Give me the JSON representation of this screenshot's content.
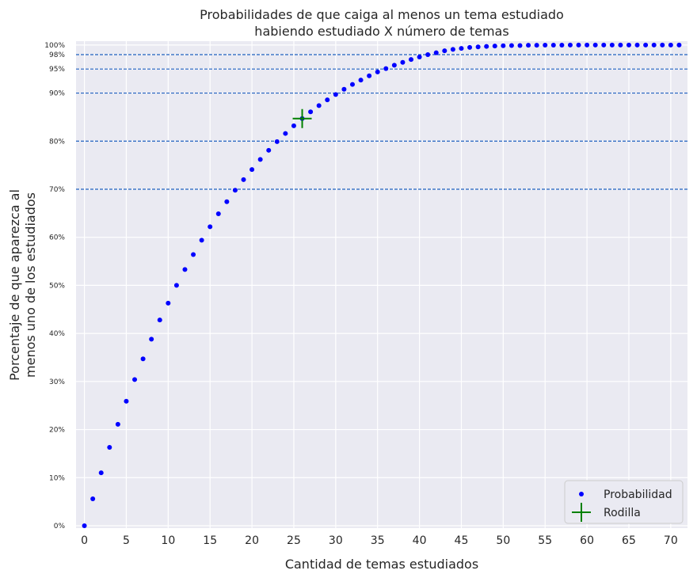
{
  "chart_data": {
    "type": "scatter",
    "title_line1": "Probabilidades de que caiga al menos un tema estudiado",
    "title_line2": "habiendo estudiado X número de temas",
    "xlabel": "Cantidad de temas estudiados",
    "ylabel_line1": "Porcentaje de que aparezca al",
    "ylabel_line2": "menos uno de los estudiados",
    "xlim": [
      -1,
      72
    ],
    "ylim": [
      -0.5,
      100.8
    ],
    "x_ticks": [
      0,
      5,
      10,
      15,
      20,
      25,
      30,
      35,
      40,
      45,
      50,
      55,
      60,
      65,
      70
    ],
    "y_ticks": [
      {
        "value": 0,
        "label": "0%"
      },
      {
        "value": 10,
        "label": "10%"
      },
      {
        "value": 20,
        "label": "20%"
      },
      {
        "value": 30,
        "label": "30%"
      },
      {
        "value": 40,
        "label": "40%"
      },
      {
        "value": 50,
        "label": "50%"
      },
      {
        "value": 60,
        "label": "60%"
      },
      {
        "value": 70,
        "label": "70%"
      },
      {
        "value": 80,
        "label": "80%"
      },
      {
        "value": 90,
        "label": "90%"
      },
      {
        "value": 95,
        "label": "95%"
      },
      {
        "value": 98,
        "label": "98%"
      },
      {
        "value": 100,
        "label": "100%"
      }
    ],
    "reference_lines": [
      70,
      80,
      90,
      95,
      98
    ],
    "grid": true,
    "legend_position": "lower-right",
    "series": [
      {
        "name": "Probabilidad",
        "color": "#0000ff",
        "x": [
          0,
          1,
          2,
          3,
          4,
          5,
          6,
          7,
          8,
          9,
          10,
          11,
          12,
          13,
          14,
          15,
          16,
          17,
          18,
          19,
          20,
          21,
          22,
          23,
          24,
          25,
          26,
          27,
          28,
          29,
          30,
          31,
          32,
          33,
          34,
          35,
          36,
          37,
          38,
          39,
          40,
          41,
          42,
          43,
          44,
          45,
          46,
          47,
          48,
          49,
          50,
          51,
          52,
          53,
          54,
          55,
          56,
          57,
          58,
          59,
          60,
          61,
          62,
          63,
          64,
          65,
          66,
          67,
          68,
          69,
          70,
          71
        ],
        "y": [
          0,
          5.6,
          11.0,
          16.3,
          21.1,
          25.9,
          30.4,
          34.7,
          38.8,
          42.8,
          46.3,
          50.0,
          53.3,
          56.4,
          59.4,
          62.2,
          64.9,
          67.4,
          69.8,
          72.0,
          74.1,
          76.2,
          78.1,
          79.9,
          81.6,
          83.2,
          84.7,
          86.1,
          87.4,
          88.6,
          89.7,
          90.8,
          91.8,
          92.7,
          93.6,
          94.4,
          95.1,
          95.8,
          96.4,
          97.0,
          97.5,
          98.0,
          98.4,
          98.8,
          99.1,
          99.3,
          99.5,
          99.6,
          99.7,
          99.8,
          99.85,
          99.9,
          99.9,
          99.95,
          99.95,
          99.97,
          99.98,
          99.98,
          99.99,
          99.99,
          100,
          100,
          100,
          100,
          100,
          100,
          100,
          100,
          100,
          100,
          100,
          100
        ]
      },
      {
        "name": "Rodilla",
        "color": "#008000",
        "marker": "+",
        "x": [
          26
        ],
        "y": [
          84.7
        ]
      }
    ],
    "colors": {
      "background": "#eaeaf2",
      "grid": "#ffffff",
      "reference_line": "#1f5fbf",
      "dots": "#0000ff",
      "knee": "#008000"
    }
  }
}
